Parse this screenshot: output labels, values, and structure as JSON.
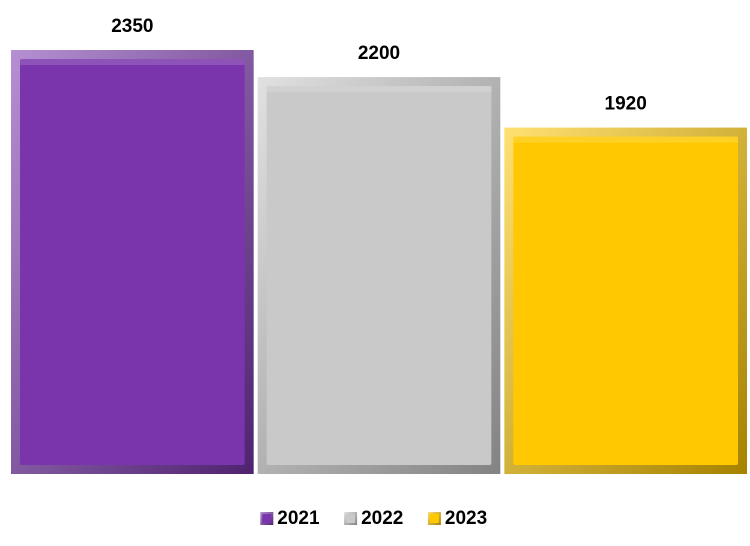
{
  "chart_data": {
    "type": "bar",
    "categories": [
      "2021",
      "2022",
      "2023"
    ],
    "values": [
      2350,
      2200,
      1920
    ],
    "data_labels": [
      "2350",
      "2200",
      "1920"
    ],
    "colors": [
      "#7a35ad",
      "#c9c9c9",
      "#ffc800"
    ],
    "ylim": [
      0,
      2350
    ],
    "grid": false,
    "legend": {
      "placement": "bottom-center",
      "entries": [
        {
          "label": "2021",
          "color": "#7a35ad"
        },
        {
          "label": "2022",
          "color": "#c9c9c9"
        },
        {
          "label": "2023",
          "color": "#ffc800"
        }
      ]
    },
    "title": "",
    "xlabel": "",
    "ylabel": ""
  }
}
